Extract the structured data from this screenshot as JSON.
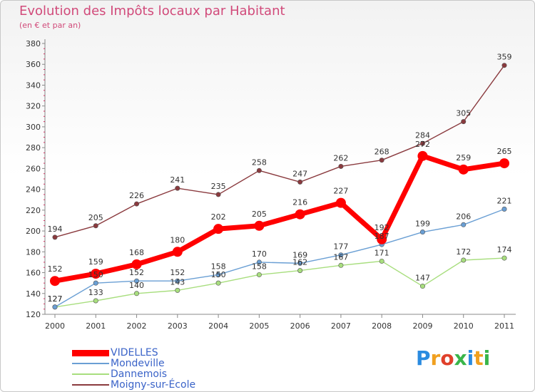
{
  "title": "Evolution des Impôts locaux par Habitant",
  "subtitle": "(en € et par an)",
  "logo": {
    "text": "Proxiti",
    "letter_colors": [
      "#2a8be0",
      "#f0a020",
      "#e0402a",
      "#39b54a",
      "#2a8be0",
      "#f0a020",
      "#39b54a"
    ]
  },
  "chart_data": {
    "type": "line",
    "x": [
      "2000",
      "2001",
      "2002",
      "2003",
      "2004",
      "2005",
      "2006",
      "2007",
      "2008",
      "2009",
      "2010",
      "2011"
    ],
    "ylim": [
      120,
      380
    ],
    "yticks": [
      120,
      140,
      160,
      180,
      200,
      220,
      240,
      260,
      280,
      300,
      320,
      340,
      360,
      380
    ],
    "grid": false,
    "legend_position": "bottom-left",
    "series": [
      {
        "name": "VIDELLES",
        "color": "#ff0000",
        "emphasis": true,
        "values": [
          152,
          159,
          168,
          180,
          202,
          205,
          216,
          227,
          192,
          272,
          259,
          265
        ]
      },
      {
        "name": "Mondeville",
        "color": "#6a9fd4",
        "emphasis": false,
        "values": [
          127,
          150,
          152,
          152,
          158,
          170,
          169,
          177,
          187,
          199,
          206,
          221
        ]
      },
      {
        "name": "Dannemois",
        "color": "#a8de7e",
        "emphasis": false,
        "values": [
          127,
          133,
          140,
          143,
          150,
          158,
          162,
          167,
          171,
          147,
          172,
          174
        ]
      },
      {
        "name": "Moigny-sur-École",
        "color": "#8a3a3e",
        "emphasis": false,
        "values": [
          194,
          205,
          226,
          241,
          235,
          258,
          247,
          262,
          268,
          284,
          305,
          359
        ]
      }
    ]
  }
}
